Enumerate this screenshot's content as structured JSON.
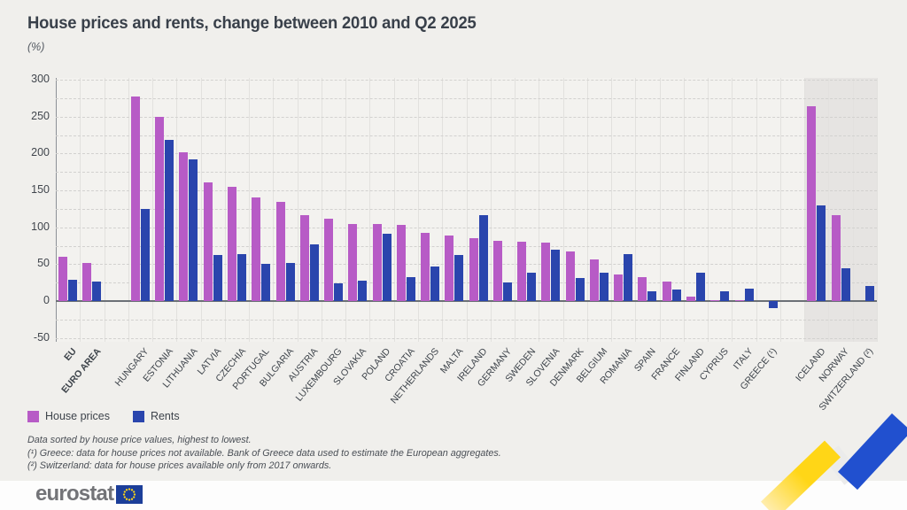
{
  "header": {
    "title": "House prices and rents, change between 2010 and Q2 2025",
    "unit": "(%)"
  },
  "chart_data": {
    "type": "bar",
    "title": "House prices and rents, change between 2010 and Q2 2025",
    "ylabel": "(%)",
    "ylim": [
      -50,
      300
    ],
    "ytick_labels": [
      300,
      250,
      200,
      150,
      100,
      50,
      0,
      -50
    ],
    "gridline_step": 25,
    "grid": "horizontal-dashed",
    "legend_position": "bottom-left",
    "categories": [
      "EU",
      "EURO AREA",
      "HUNGARY",
      "ESTONIA",
      "LITHUANIA",
      "LATVIA",
      "CZECHIA",
      "PORTUGAL",
      "BULGARIA",
      "AUSTRIA",
      "LUXEMBOURG",
      "SLOVAKIA",
      "POLAND",
      "CROATIA",
      "NETHERLANDS",
      "MALTA",
      "IRELAND",
      "GERMANY",
      "SWEDEN",
      "SLOVENIA",
      "DENMARK",
      "BELGIUM",
      "ROMANIA",
      "SPAIN",
      "FRANCE",
      "FINLAND",
      "CYPRUS",
      "ITALY",
      "GREECE (¹)",
      "ICELAND",
      "NORWAY",
      "SWITZERLAND (²)"
    ],
    "bold_categories": [
      "EU",
      "EURO AREA"
    ],
    "gap_after_indices": [
      1,
      28
    ],
    "highlight": {
      "from_index": 29,
      "to_index": 31,
      "background": "#e6e4e2"
    },
    "series": [
      {
        "name": "House prices",
        "color": "#b75bc6",
        "values": [
          60,
          52,
          277,
          250,
          202,
          161,
          155,
          141,
          134,
          117,
          112,
          105,
          104,
          103,
          92,
          89,
          85,
          82,
          80,
          79,
          67,
          56,
          36,
          32,
          26,
          6,
          1,
          1,
          null,
          264,
          116,
          null
        ]
      },
      {
        "name": "Rents",
        "color": "#2a45ad",
        "values": [
          29,
          27,
          125,
          218,
          192,
          63,
          64,
          50,
          52,
          77,
          24,
          28,
          91,
          32,
          47,
          63,
          117,
          25,
          39,
          70,
          31,
          38,
          64,
          13,
          16,
          39,
          13,
          17,
          -9,
          130,
          44,
          20
        ]
      }
    ]
  },
  "legend": {
    "items": [
      {
        "label": "House prices",
        "color": "#b75bc6"
      },
      {
        "label": "Rents",
        "color": "#2a45ad"
      }
    ]
  },
  "footnotes": {
    "line1": "Data sorted by house price values, highest to lowest.",
    "line2": "(¹) Greece: data for house prices not available. Bank of Greece data used to estimate the European aggregates.",
    "line3": "(²) Switzerland: data for house prices available only from 2017 onwards."
  },
  "footer": {
    "logo_text": "eurostat"
  },
  "colors": {
    "background": "#f0efec",
    "house_prices": "#b75bc6",
    "rents": "#2a45ad",
    "highlight_region": "#e6e4e2",
    "accent_yellow": "#ffd617",
    "accent_blue": "#2150cf"
  }
}
